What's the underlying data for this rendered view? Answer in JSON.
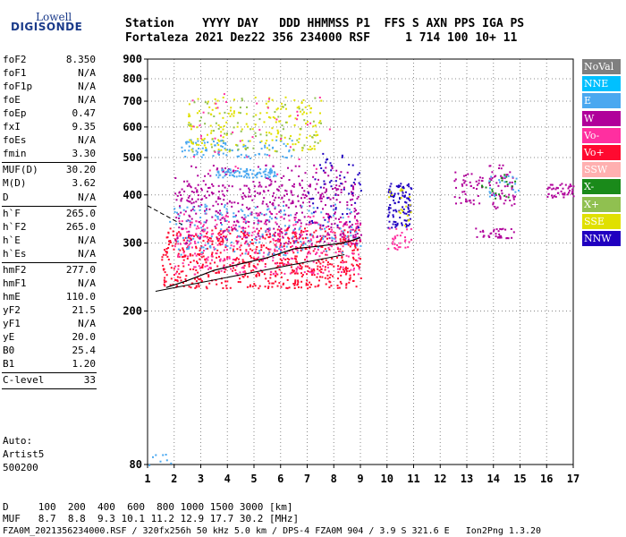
{
  "logo": {
    "line1": "Lowell",
    "line2": "DIGISONDE"
  },
  "header": {
    "row1": "Station    YYYY DAY   DDD HHMMSS P1  FFS S AXN PPS IGA PS",
    "row2": "Fortaleza 2021 Dez22 356 234000 RSF     1 714 100 10+ 11"
  },
  "params": [
    {
      "k": "foF2",
      "v": "8.350"
    },
    {
      "k": "foF1",
      "v": "N/A"
    },
    {
      "k": "foF1p",
      "v": "N/A"
    },
    {
      "k": "foE",
      "v": "N/A"
    },
    {
      "k": "foEp",
      "v": "0.47"
    },
    {
      "k": "fxI",
      "v": "9.35"
    },
    {
      "k": "foEs",
      "v": "N/A"
    },
    {
      "k": "fmin",
      "v": "3.30"
    },
    {
      "k": "MUF(D)",
      "v": "30.20"
    },
    {
      "k": "M(D)",
      "v": "3.62"
    },
    {
      "k": "D",
      "v": "N/A"
    },
    {
      "k": "h`F",
      "v": "265.0"
    },
    {
      "k": "h`F2",
      "v": "265.0"
    },
    {
      "k": "h`E",
      "v": "N/A"
    },
    {
      "k": "h`Es",
      "v": "N/A"
    },
    {
      "k": "hmF2",
      "v": "277.0"
    },
    {
      "k": "hmF1",
      "v": "N/A"
    },
    {
      "k": "hmE",
      "v": "110.0"
    },
    {
      "k": "yF2",
      "v": "21.5"
    },
    {
      "k": "yF1",
      "v": "N/A"
    },
    {
      "k": "yE",
      "v": "20.0"
    },
    {
      "k": "B0",
      "v": "25.4"
    },
    {
      "k": "B1",
      "v": "1.20"
    },
    {
      "k": "C-level",
      "v": "33"
    }
  ],
  "auto": {
    "line1": "Auto:",
    "line2": "Artist5",
    "line3": "500200"
  },
  "legend": [
    {
      "label": "NoVal",
      "color": "#7f7f7f"
    },
    {
      "label": "NNE",
      "color": "#00c0ff"
    },
    {
      "label": "E",
      "color": "#4aa8f0"
    },
    {
      "label": "W",
      "color": "#b0009a"
    },
    {
      "label": "Vo-",
      "color": "#ff2fa0"
    },
    {
      "label": "Vo+",
      "color": "#ff0a30"
    },
    {
      "label": "SSW",
      "color": "#ffb0b0"
    },
    {
      "label": "X-",
      "color": "#1a8a1a"
    },
    {
      "label": "X+",
      "color": "#90c050"
    },
    {
      "label": "SSE",
      "color": "#e0e000"
    },
    {
      "label": "NNW",
      "color": "#2000c0"
    }
  ],
  "footer": {
    "row_d": "D     100  200  400  600  800 1000 1500 3000 [km]",
    "row_muf": "MUF   8.7  8.8  9.3 10.1 11.2 12.9 17.7 30.2 [MHz]",
    "row_file": "FZA0M_2021356234000.RSF / 320fx256h 50 kHz 5.0 km / DPS-4 FZA0M 904 / 3.9 S 321.6 E   Ion2Png 1.3.20"
  },
  "chart_data": {
    "type": "scatter",
    "xlim": [
      1,
      17
    ],
    "ylim": [
      80,
      900
    ],
    "ylog": true,
    "xticks": [
      "1",
      "2",
      "3",
      "4",
      "5",
      "6",
      "7",
      "8",
      "9",
      "10",
      "11",
      "12",
      "13",
      "14",
      "15",
      "16",
      "17"
    ],
    "yticks": [
      "80",
      "200",
      "300",
      "400",
      "500",
      "600",
      "700",
      "800",
      "900"
    ],
    "ytick_values": [
      80,
      200,
      300,
      400,
      500,
      600,
      700,
      800,
      900
    ],
    "grid": "dotted",
    "clusters": [
      {
        "x": [
          1.5,
          9.0
        ],
        "y": [
          230,
          330
        ],
        "color": "#ff0a30",
        "n": 700
      },
      {
        "x": [
          2.0,
          9.0
        ],
        "y": [
          250,
          360
        ],
        "color": "#ff2fa0",
        "n": 350
      },
      {
        "x": [
          2.0,
          9.0
        ],
        "y": [
          300,
          430
        ],
        "color": "#b0009a",
        "n": 400
      },
      {
        "x": [
          1.8,
          9.0
        ],
        "y": [
          280,
          380
        ],
        "color": "#4aa8f0",
        "n": 180
      },
      {
        "x": [
          2.0,
          8.5
        ],
        "y": [
          380,
          480
        ],
        "color": "#b0009a",
        "n": 120
      },
      {
        "x": [
          3.5,
          5.8
        ],
        "y": [
          445,
          470
        ],
        "color": "#4aa8f0",
        "n": 90
      },
      {
        "x": [
          2.2,
          6.5
        ],
        "y": [
          500,
          560
        ],
        "color": "#4aa8f0",
        "n": 90
      },
      {
        "x": [
          2.5,
          7.5
        ],
        "y": [
          520,
          720
        ],
        "color": "#e0e000",
        "n": 180
      },
      {
        "x": [
          2.5,
          7.5
        ],
        "y": [
          520,
          720
        ],
        "color": "#90c050",
        "n": 70
      },
      {
        "x": [
          2.5,
          8.0
        ],
        "y": [
          450,
          740
        ],
        "color": "#ff2fa0",
        "n": 40
      },
      {
        "x": [
          7.0,
          9.0
        ],
        "y": [
          330,
          520
        ],
        "color": "#2000c0",
        "n": 60
      },
      {
        "x": [
          10.0,
          10.9
        ],
        "y": [
          330,
          430
        ],
        "color": "#2000c0",
        "n": 110
      },
      {
        "x": [
          10.0,
          10.9
        ],
        "y": [
          290,
          330
        ],
        "color": "#ff2fa0",
        "n": 30
      },
      {
        "x": [
          10.0,
          10.9
        ],
        "y": [
          330,
          420
        ],
        "color": "#e0e000",
        "n": 20
      },
      {
        "x": [
          12.5,
          13.6
        ],
        "y": [
          380,
          460
        ],
        "color": "#b0009a",
        "n": 45
      },
      {
        "x": [
          13.8,
          14.8
        ],
        "y": [
          370,
          480
        ],
        "color": "#b0009a",
        "n": 55
      },
      {
        "x": [
          13.5,
          14.8
        ],
        "y": [
          390,
          460
        ],
        "color": "#1a8a1a",
        "n": 20
      },
      {
        "x": [
          13.8,
          15.0
        ],
        "y": [
          390,
          450
        ],
        "color": "#4aa8f0",
        "n": 20
      },
      {
        "x": [
          13.3,
          14.8
        ],
        "y": [
          310,
          330
        ],
        "color": "#b0009a",
        "n": 35
      },
      {
        "x": [
          16.0,
          17.0
        ],
        "y": [
          395,
          430
        ],
        "color": "#b0009a",
        "n": 45
      },
      {
        "x": [
          1.0,
          2.0
        ],
        "y": [
          80,
          86
        ],
        "color": "#4aa8f0",
        "n": 8
      }
    ],
    "profile_trace": {
      "x": [
        1.7,
        2.5,
        3.5,
        4.5,
        5.5,
        6.5,
        7.5,
        8.3,
        8.7,
        9.0
      ],
      "y": [
        230,
        240,
        255,
        265,
        275,
        290,
        295,
        300,
        305,
        310
      ]
    },
    "hF_line": {
      "x": [
        1.3,
        8.4
      ],
      "y": [
        225,
        280
      ]
    },
    "dashed_line": {
      "x": [
        1.0,
        2.3
      ],
      "y": [
        375,
        335
      ]
    }
  }
}
